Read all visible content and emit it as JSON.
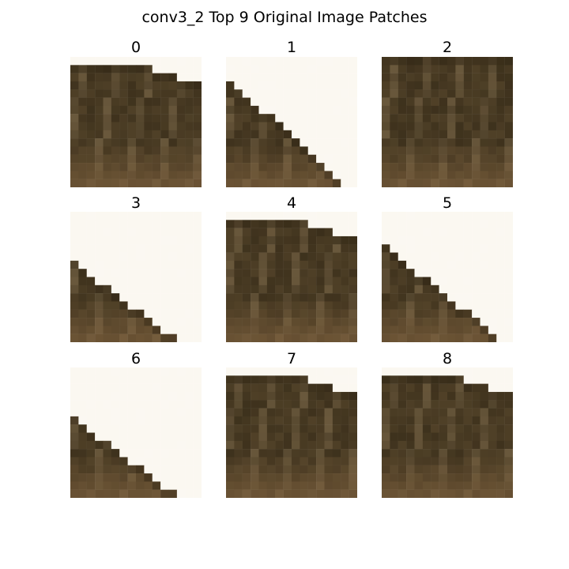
{
  "title": "conv3_2 Top 9 Original Image Patches",
  "patches": [
    {
      "label": "0",
      "kind": "edge-top"
    },
    {
      "label": "1",
      "kind": "diagonal-high"
    },
    {
      "label": "2",
      "kind": "full"
    },
    {
      "label": "3",
      "kind": "diagonal-low"
    },
    {
      "label": "4",
      "kind": "edge-top"
    },
    {
      "label": "5",
      "kind": "diagonal-mid"
    },
    {
      "label": "6",
      "kind": "diagonal-low"
    },
    {
      "label": "7",
      "kind": "edge-top"
    },
    {
      "label": "8",
      "kind": "edge-top"
    }
  ],
  "colors": {
    "background": "#ffffff",
    "sky": "#fbf8f1",
    "fur_dark": "#2e2413",
    "fur_mid": "#5b4a2e",
    "fur_light": "#8a7656",
    "fur_bottom": "#7a5e3c"
  }
}
